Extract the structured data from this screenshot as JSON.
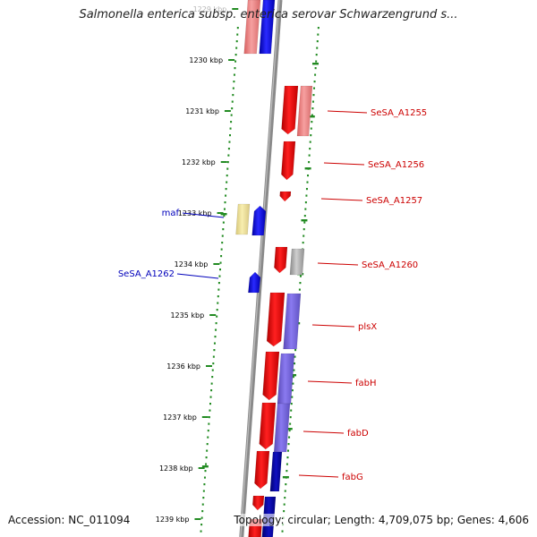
{
  "title": "Salmonella enterica subsp. enterica serovar Schwarzengrund s...",
  "footer": {
    "accession": "Accession: NC_011094",
    "summary": "Topology: circular; Length: 4,709,075 bp; Genes: 4,606"
  },
  "axis": {
    "unit": "kbp",
    "ticks": [
      {
        "label": "1229 kbp",
        "faded": true
      },
      {
        "label": "1230 kbp"
      },
      {
        "label": "1231 kbp"
      },
      {
        "label": "1232 kbp"
      },
      {
        "label": "1233 kbp"
      },
      {
        "label": "1234 kbp"
      },
      {
        "label": "1235 kbp"
      },
      {
        "label": "1236 kbp"
      },
      {
        "label": "1237 kbp"
      },
      {
        "label": "1238 kbp"
      },
      {
        "label": "1239 kbp"
      }
    ]
  },
  "genes": [
    {
      "label": "SeSA_A1255",
      "strand": "forward",
      "color": "#cc0000"
    },
    {
      "label": "SeSA_A1256",
      "strand": "forward",
      "color": "#cc0000"
    },
    {
      "label": "SeSA_A1257",
      "strand": "forward",
      "color": "#cc0000"
    },
    {
      "label": "SeSA_A1260",
      "strand": "forward",
      "color": "#cc0000"
    },
    {
      "label": "plsX",
      "strand": "forward",
      "color": "#cc0000"
    },
    {
      "label": "fabH",
      "strand": "forward",
      "color": "#cc0000"
    },
    {
      "label": "fabD",
      "strand": "forward",
      "color": "#cc0000"
    },
    {
      "label": "fabG",
      "strand": "forward",
      "color": "#cc0000"
    },
    {
      "label": "maf",
      "strand": "reverse",
      "color": "#0000bb"
    },
    {
      "label": "SeSA_A1262",
      "strand": "reverse",
      "color": "#0000bb"
    }
  ],
  "colors": {
    "forward_cds": "#ff0000",
    "reverse_cds": "#0000ff",
    "cog_purple": "#7a6ad8",
    "cog_pink": "#f08080",
    "cog_yellow": "#f2e39a",
    "cog_grey": "#aaaaaa",
    "backbone": "#808080",
    "gc_dots": "#228b22"
  }
}
